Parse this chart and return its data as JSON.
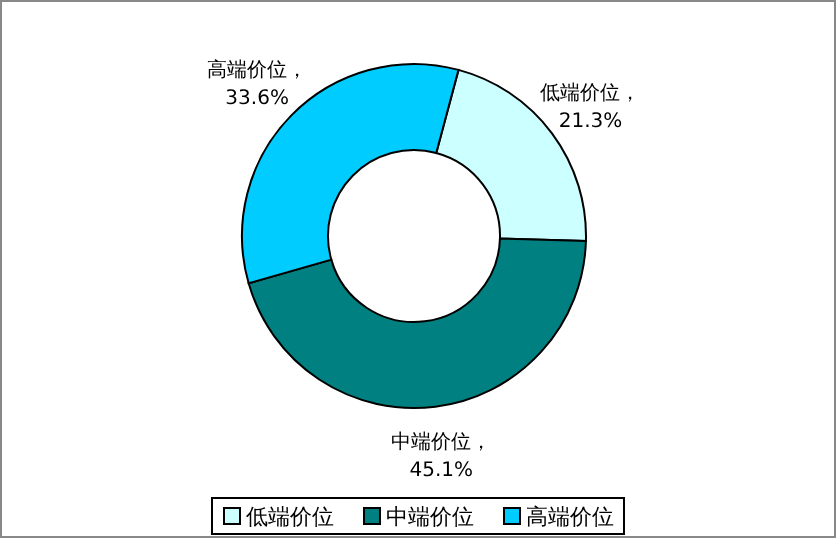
{
  "chart_data": {
    "type": "donut",
    "categories": [
      "低端价位",
      "中端价位",
      "高端价位"
    ],
    "values": [
      21.3,
      45.1,
      33.6
    ],
    "colors": [
      "#ccffff",
      "#008080",
      "#00ccff"
    ],
    "value_labels": [
      "低端价位，\n21.3%",
      "中端价位，\n45.1%",
      "高端价位，\n33.6%"
    ],
    "legend": "bottom"
  }
}
